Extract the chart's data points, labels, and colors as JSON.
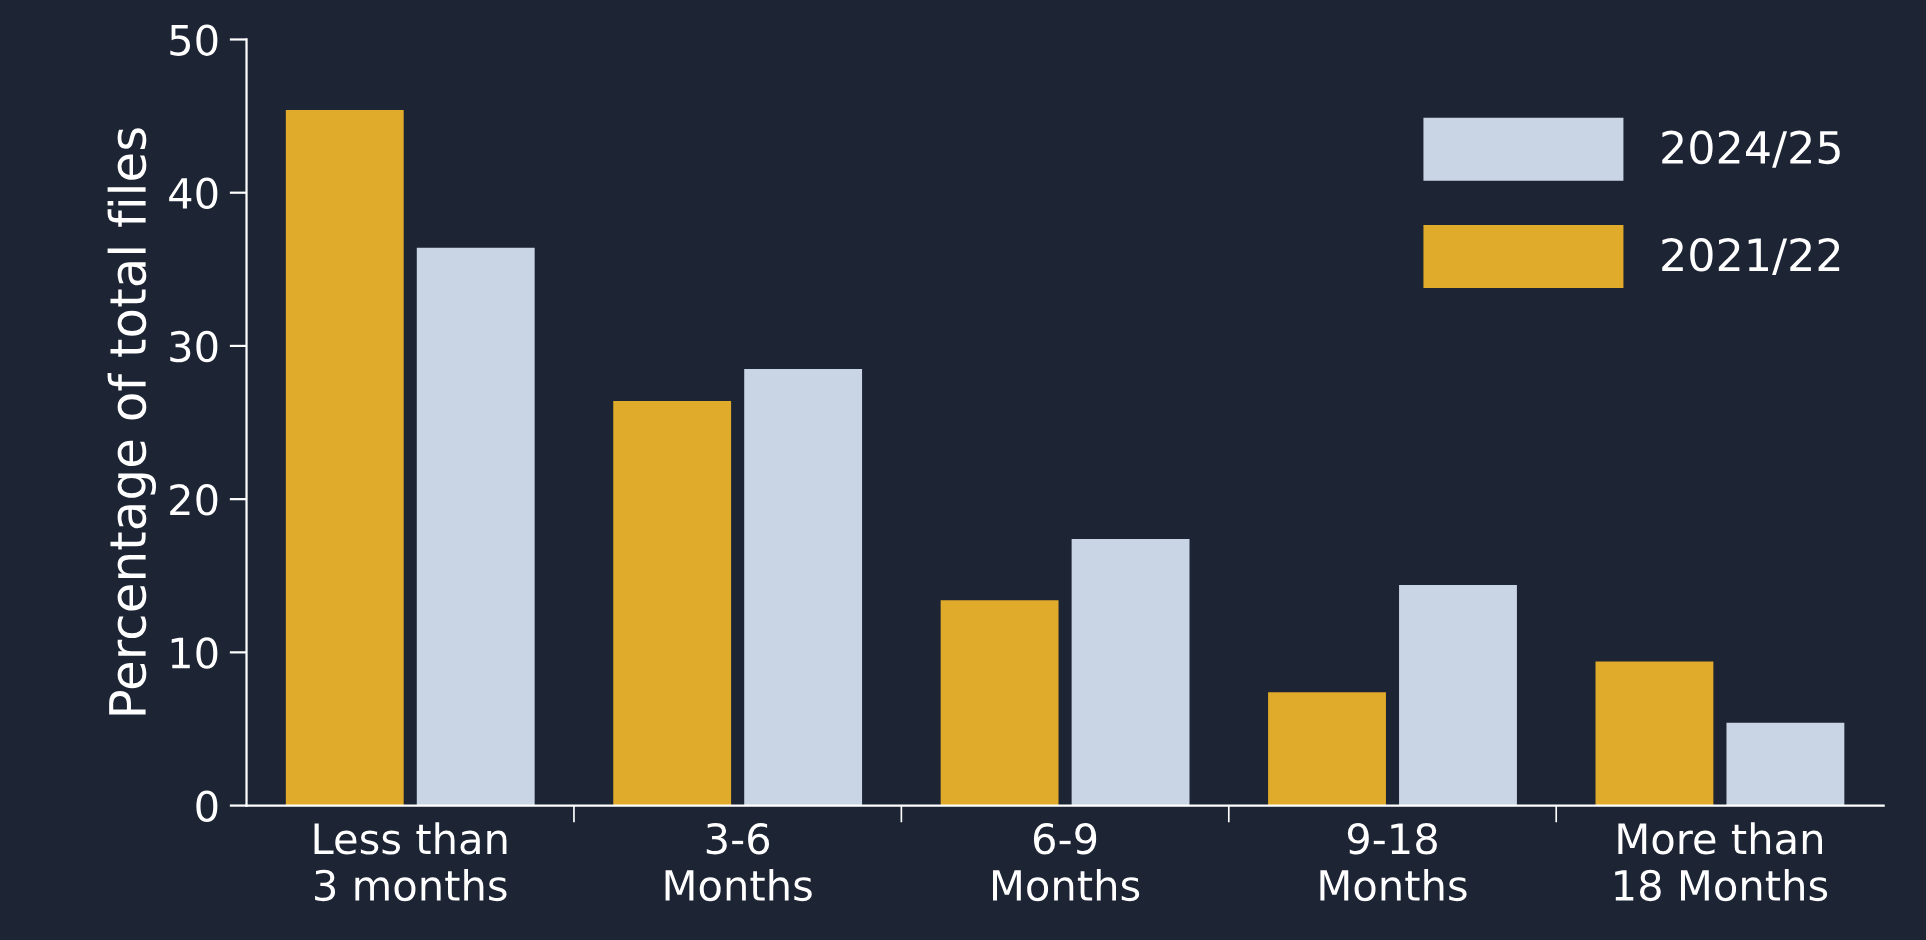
{
  "chart_data": {
    "type": "bar",
    "ylabel": "Percentage of total files",
    "categories": [
      "Less than\n3 months",
      "3-6\nMonths",
      "6-9\nMonths",
      "9-18\nMonths",
      "More than\n18 Months"
    ],
    "series": [
      {
        "name": "2021/22",
        "color": "#e0aa2a",
        "values": [
          45.4,
          26.4,
          13.4,
          7.4,
          9.4
        ]
      },
      {
        "name": "2024/25",
        "color": "#c9d4e4",
        "values": [
          36.4,
          28.5,
          17.4,
          14.4,
          5.4
        ]
      }
    ],
    "ylim": [
      0,
      50
    ],
    "yticks": [
      0,
      10,
      20,
      30,
      40,
      50
    ],
    "grid": false,
    "legend": "top right"
  }
}
